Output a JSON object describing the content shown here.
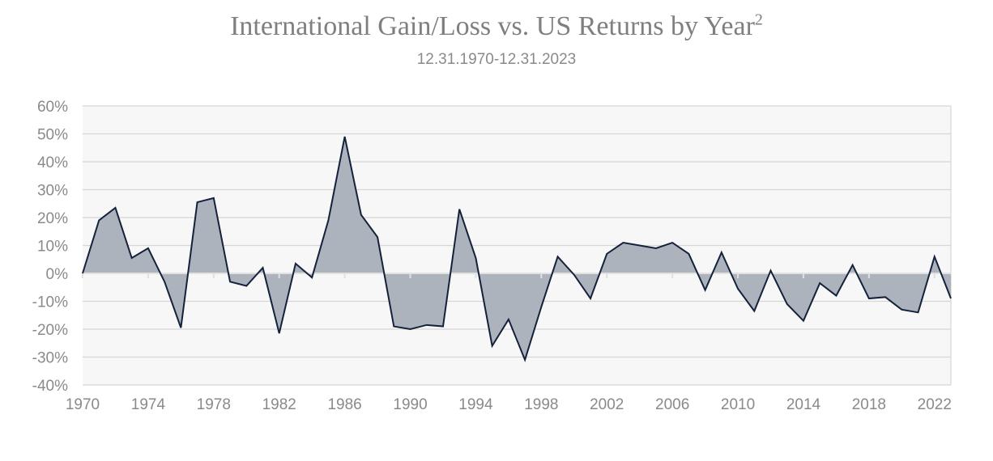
{
  "chart_data": {
    "type": "area",
    "title": "International Gain/Loss vs. US Returns by Year",
    "title_superscript": "2",
    "subtitle": "12.31.1970-12.31.2023",
    "xlabel": "",
    "ylabel": "",
    "xlim": [
      1970,
      2023
    ],
    "ylim": [
      -0.4,
      0.6
    ],
    "y_ticks": [
      0.6,
      0.5,
      0.4,
      0.3,
      0.2,
      0.1,
      0.0,
      -0.1,
      -0.2,
      -0.3,
      -0.4
    ],
    "y_tick_labels": [
      "60%",
      "50%",
      "40%",
      "30%",
      "20%",
      "10%",
      "0%",
      "-10%",
      "-20%",
      "-30%",
      "-40%"
    ],
    "x_ticks": [
      1970,
      1974,
      1978,
      1982,
      1986,
      1990,
      1994,
      1998,
      2002,
      2006,
      2010,
      2014,
      2018,
      2022
    ],
    "x_tick_labels": [
      "1970",
      "1974",
      "1978",
      "1982",
      "1986",
      "1990",
      "1994",
      "1998",
      "2002",
      "2006",
      "2010",
      "2014",
      "2018",
      "2022"
    ],
    "grid": true,
    "legend": "none",
    "colors": {
      "fill": "#adb3bd",
      "line": "#14213a",
      "grid": "#d6d6d6",
      "plot_bg": "#f7f7f7",
      "axis_text": "#8a8a8a",
      "title": "#7f7f7f"
    },
    "x": [
      1970,
      1971,
      1972,
      1973,
      1974,
      1975,
      1976,
      1977,
      1978,
      1979,
      1980,
      1981,
      1982,
      1983,
      1984,
      1985,
      1986,
      1987,
      1988,
      1989,
      1990,
      1991,
      1992,
      1993,
      1994,
      1995,
      1996,
      1997,
      1998,
      1999,
      2000,
      2001,
      2002,
      2003,
      2004,
      2005,
      2006,
      2007,
      2008,
      2009,
      2010,
      2011,
      2012,
      2013,
      2014,
      2015,
      2016,
      2017,
      2018,
      2019,
      2020,
      2021,
      2022,
      2023
    ],
    "values": [
      0.0,
      0.19,
      0.235,
      0.055,
      0.09,
      -0.03,
      -0.195,
      0.255,
      0.27,
      -0.03,
      -0.045,
      0.02,
      -0.215,
      0.035,
      -0.015,
      0.19,
      0.49,
      0.21,
      0.13,
      -0.19,
      -0.2,
      -0.185,
      -0.19,
      0.23,
      0.055,
      -0.26,
      -0.165,
      -0.31,
      -0.12,
      0.06,
      -0.005,
      -0.09,
      0.07,
      0.11,
      0.1,
      0.09,
      0.11,
      0.07,
      -0.06,
      0.075,
      -0.055,
      -0.135,
      0.01,
      -0.11,
      -0.17,
      -0.035,
      -0.08,
      0.03,
      -0.09,
      -0.085,
      -0.13,
      -0.14,
      0.06,
      -0.09
    ]
  }
}
